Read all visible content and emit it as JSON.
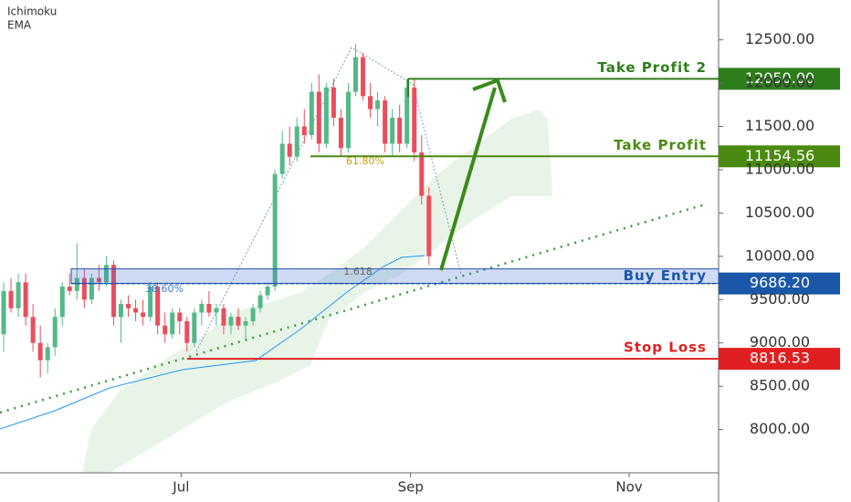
{
  "chart_data": {
    "type": "candlestick",
    "indicators": [
      "Ichimoku",
      "EMA"
    ],
    "x": [
      0,
      1,
      2,
      3,
      4,
      5,
      6,
      7,
      8,
      9,
      10,
      11,
      12,
      13,
      14,
      15,
      16,
      17,
      18,
      19,
      20,
      21,
      22,
      23,
      24,
      25,
      26,
      27,
      28,
      29,
      30,
      31,
      32,
      33,
      34,
      35,
      36,
      37,
      38,
      39,
      40,
      41,
      42,
      43,
      44,
      45,
      46,
      47,
      48,
      49,
      50,
      51,
      52,
      53,
      54,
      55,
      56,
      57,
      58
    ],
    "open": [
      9100,
      9600,
      9400,
      9700,
      9300,
      9000,
      8800,
      8950,
      9300,
      9650,
      9600,
      9750,
      9500,
      9750,
      9700,
      9900,
      9300,
      9450,
      9400,
      9350,
      9300,
      9650,
      9200,
      9100,
      9350,
      9250,
      9000,
      9350,
      9450,
      9350,
      9400,
      9200,
      9300,
      9200,
      9250,
      9400,
      9550,
      9650,
      10950,
      11300,
      11150,
      11500,
      11400,
      11900,
      11300,
      11950,
      11600,
      11250,
      11900,
      12300,
      11850,
      11700,
      11800,
      11300,
      11600,
      11300,
      11950,
      11200,
      10700
    ],
    "high": [
      9700,
      9750,
      9800,
      9800,
      9450,
      9200,
      9000,
      9400,
      9700,
      9800,
      10150,
      9850,
      9800,
      9900,
      10000,
      9950,
      9500,
      9550,
      9500,
      9500,
      9700,
      9700,
      9350,
      9400,
      9400,
      9300,
      9400,
      9500,
      9600,
      9450,
      9450,
      9350,
      9400,
      9300,
      9450,
      9600,
      9700,
      11000,
      11450,
      11500,
      11600,
      11700,
      12000,
      12100,
      12000,
      12050,
      11700,
      12000,
      12450,
      12350,
      12000,
      11900,
      11850,
      11700,
      11750,
      12050,
      12050,
      11400,
      10800
    ],
    "low": [
      8900,
      9350,
      9300,
      9200,
      8900,
      8600,
      8650,
      8850,
      9200,
      9550,
      9500,
      9400,
      9450,
      9600,
      9650,
      9200,
      9000,
      9300,
      9250,
      9200,
      9250,
      9100,
      9000,
      9050,
      9100,
      8900,
      8950,
      9200,
      9300,
      9200,
      9100,
      9100,
      9150,
      9050,
      9200,
      9350,
      9500,
      9600,
      10900,
      11050,
      11100,
      11300,
      11350,
      11200,
      11250,
      11500,
      11150,
      11200,
      11850,
      11800,
      11600,
      11500,
      11200,
      11150,
      11200,
      11250,
      11100,
      10600,
      9900
    ],
    "close": [
      9600,
      9400,
      9700,
      9300,
      9000,
      8800,
      8950,
      9300,
      9650,
      9600,
      9750,
      9500,
      9750,
      9700,
      9900,
      9300,
      9450,
      9400,
      9350,
      9300,
      9650,
      9200,
      9100,
      9350,
      9250,
      9000,
      9350,
      9450,
      9350,
      9400,
      9200,
      9300,
      9200,
      9250,
      9400,
      9550,
      9650,
      10950,
      11300,
      11150,
      11500,
      11400,
      11900,
      11300,
      11950,
      11600,
      11250,
      11900,
      12300,
      11850,
      11700,
      11800,
      11300,
      11600,
      11300,
      11950,
      11200,
      10700,
      10000
    ],
    "up_color": "#53b987",
    "down_color": "#eb4d5c",
    "xlim": [
      -0.5,
      97.5
    ],
    "xticks": [
      {
        "value": 24.2,
        "label": "Jul"
      },
      {
        "value": 55.5,
        "label": "Sep"
      },
      {
        "value": 85.3,
        "label": "Nov"
      }
    ],
    "ylim": [
      7500,
      12960
    ],
    "yticks": [
      {
        "value": 8000,
        "label": "8000.00"
      },
      {
        "value": 8500,
        "label": "8500.00"
      },
      {
        "value": 9000,
        "label": "9000.00"
      },
      {
        "value": 9500,
        "label": "9500.00"
      },
      {
        "value": 10000,
        "label": "10000.00"
      },
      {
        "value": 10500,
        "label": "10500.00"
      },
      {
        "value": 11000,
        "label": "11000.00"
      },
      {
        "value": 11500,
        "label": "11500.00"
      },
      {
        "value": 12000,
        "label": "12000.00"
      },
      {
        "value": 12500,
        "label": "12500.00"
      }
    ],
    "levels": [
      {
        "label": "Take Profit 2",
        "value": 12050,
        "value_label": "12050.00",
        "color": "#2e7d1b"
      },
      {
        "label": "Take Profit",
        "value": 11154.56,
        "value_label": "11154.56",
        "color": "#4a8a10"
      },
      {
        "label": "Buy Entry",
        "value": 9686.2,
        "value_label": "9686.20",
        "color": "#1a57a8"
      },
      {
        "label": "Stop Loss",
        "value": 8816.53,
        "value_label": "8816.53",
        "color": "#e02020"
      }
    ],
    "fib_labels": [
      "61.80%",
      "1.618",
      "38.60%"
    ]
  }
}
